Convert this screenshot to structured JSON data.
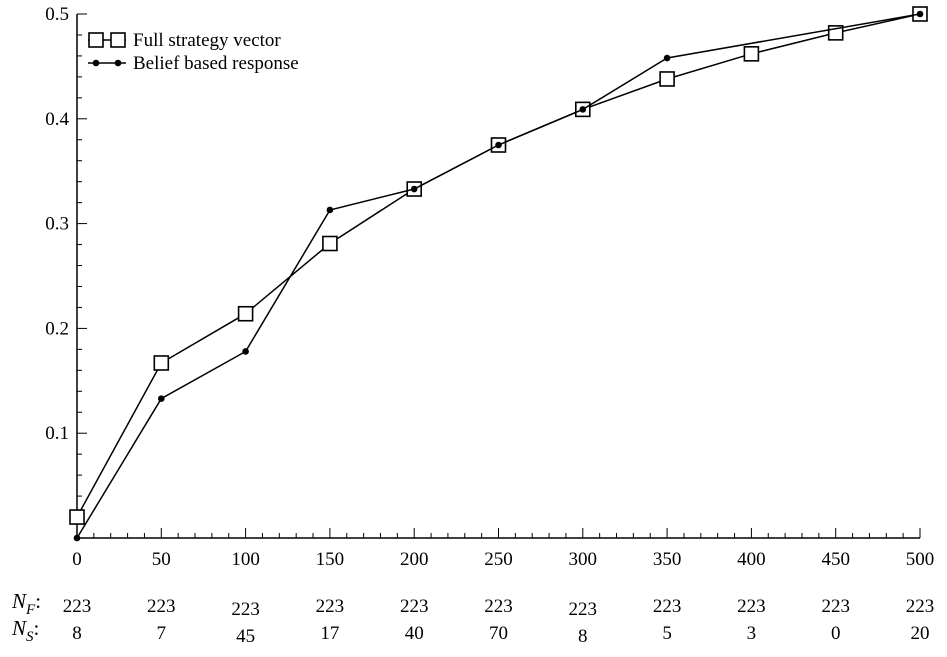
{
  "chart_data": {
    "type": "line",
    "title": "",
    "xlabel": "",
    "ylabel": "",
    "xlim": [
      0,
      500
    ],
    "ylim": [
      0,
      0.5
    ],
    "x_ticks": [
      "0",
      "50",
      "100",
      "150",
      "200",
      "250",
      "300",
      "350",
      "400",
      "450",
      "500"
    ],
    "y_ticks": [
      "0.1",
      "0.2",
      "0.3",
      "0.4",
      "0.5"
    ],
    "x_tick_values": [
      0,
      50,
      100,
      150,
      200,
      250,
      300,
      350,
      400,
      450,
      500
    ],
    "y_tick_values": [
      0.1,
      0.2,
      0.3,
      0.4,
      0.5
    ],
    "grid": false,
    "legend_position": "top-left",
    "series": [
      {
        "name": "Full strategy vector",
        "marker": "square",
        "x": [
          0,
          50,
          100,
          150,
          200,
          250,
          300,
          350,
          400,
          450,
          500
        ],
        "y": [
          0.02,
          0.167,
          0.214,
          0.281,
          0.333,
          0.375,
          0.409,
          0.438,
          0.462,
          0.482,
          0.5
        ]
      },
      {
        "name": "Belief based response",
        "marker": "dot",
        "x": [
          0,
          50,
          100,
          150,
          200,
          250,
          300,
          350,
          500
        ],
        "y": [
          0.0,
          0.133,
          0.178,
          0.313,
          0.333,
          0.375,
          0.409,
          0.458,
          0.5
        ]
      }
    ],
    "count_rows": [
      {
        "label_main": "N",
        "label_sub": "F",
        "suffix": ":",
        "values": [
          "223",
          "223",
          "223",
          "223",
          "223",
          "223",
          "223",
          "223",
          "223",
          "223",
          "223"
        ]
      },
      {
        "label_main": "N",
        "label_sub": "S",
        "suffix": ":",
        "values": [
          "8",
          "7",
          "45",
          "17",
          "40",
          "70",
          "8",
          "5",
          "3",
          "0",
          "20"
        ]
      }
    ]
  }
}
